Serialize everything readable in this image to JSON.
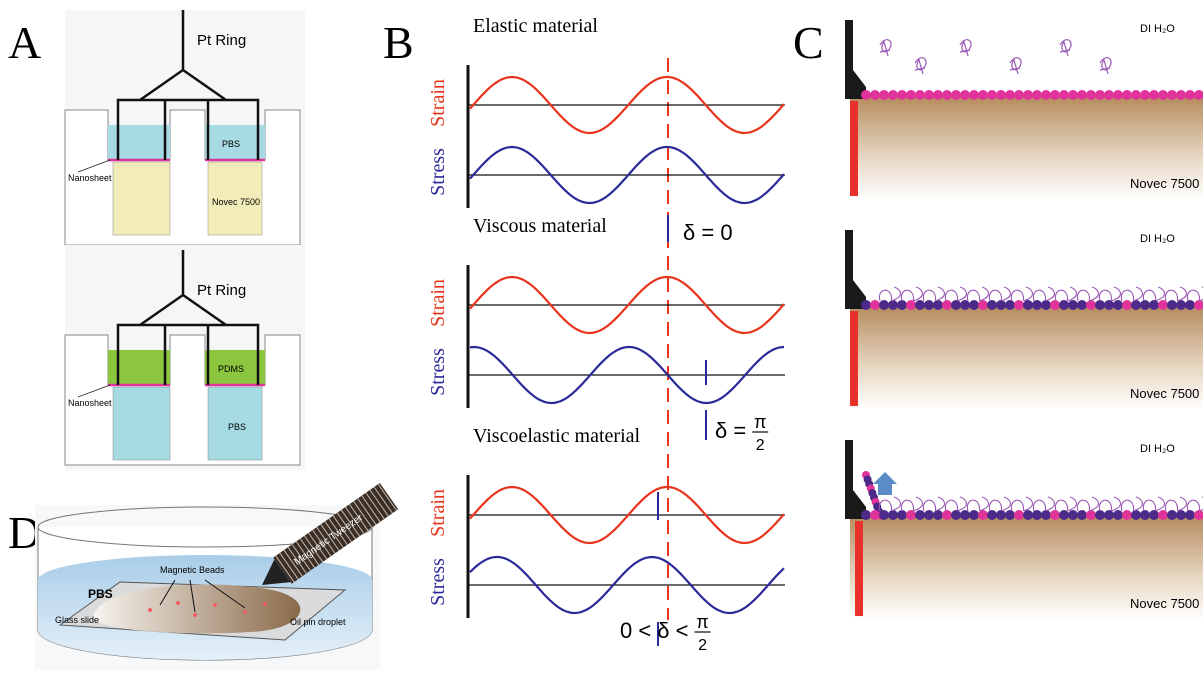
{
  "panels": {
    "a": {
      "label": "A",
      "top": {
        "ring": "Pt Ring",
        "upper_liquid": "PBS",
        "interface": "Nanosheet",
        "lower_liquid": "Novec 7500"
      },
      "bottom": {
        "ring": "Pt Ring",
        "upper_liquid": "PDMS",
        "interface": "Nanosheet",
        "lower_liquid": "PBS"
      }
    },
    "b": {
      "label": "B",
      "rows": [
        {
          "title": "Elastic material",
          "strain": "Strain",
          "stress": "Stress",
          "phase": "δ = 0"
        },
        {
          "title": "Viscous material",
          "strain": "Strain",
          "stress": "Stress",
          "phase": {
            "lhs": "δ =",
            "num": "π",
            "den": "2"
          }
        },
        {
          "title": "Viscoelastic material",
          "strain": "Strain",
          "stress": "Stress",
          "phase": {
            "lhs": "0 < δ <",
            "num": "π",
            "den": "2"
          }
        }
      ]
    },
    "c": {
      "label": "C",
      "rows": [
        {
          "upper": "DI H₂O",
          "lower": "Novec 7500"
        },
        {
          "upper": "DI H₂O",
          "lower": "Novec 7500"
        },
        {
          "upper": "DI H₂O",
          "lower": "Novec 7500"
        }
      ]
    },
    "d": {
      "label": "D",
      "medium": "PBS",
      "beads": "Magnetic Beads",
      "tweezer": "Magnetic Tweezer",
      "slide": "Glass slide",
      "droplet": "Oil pin droplet"
    }
  }
}
